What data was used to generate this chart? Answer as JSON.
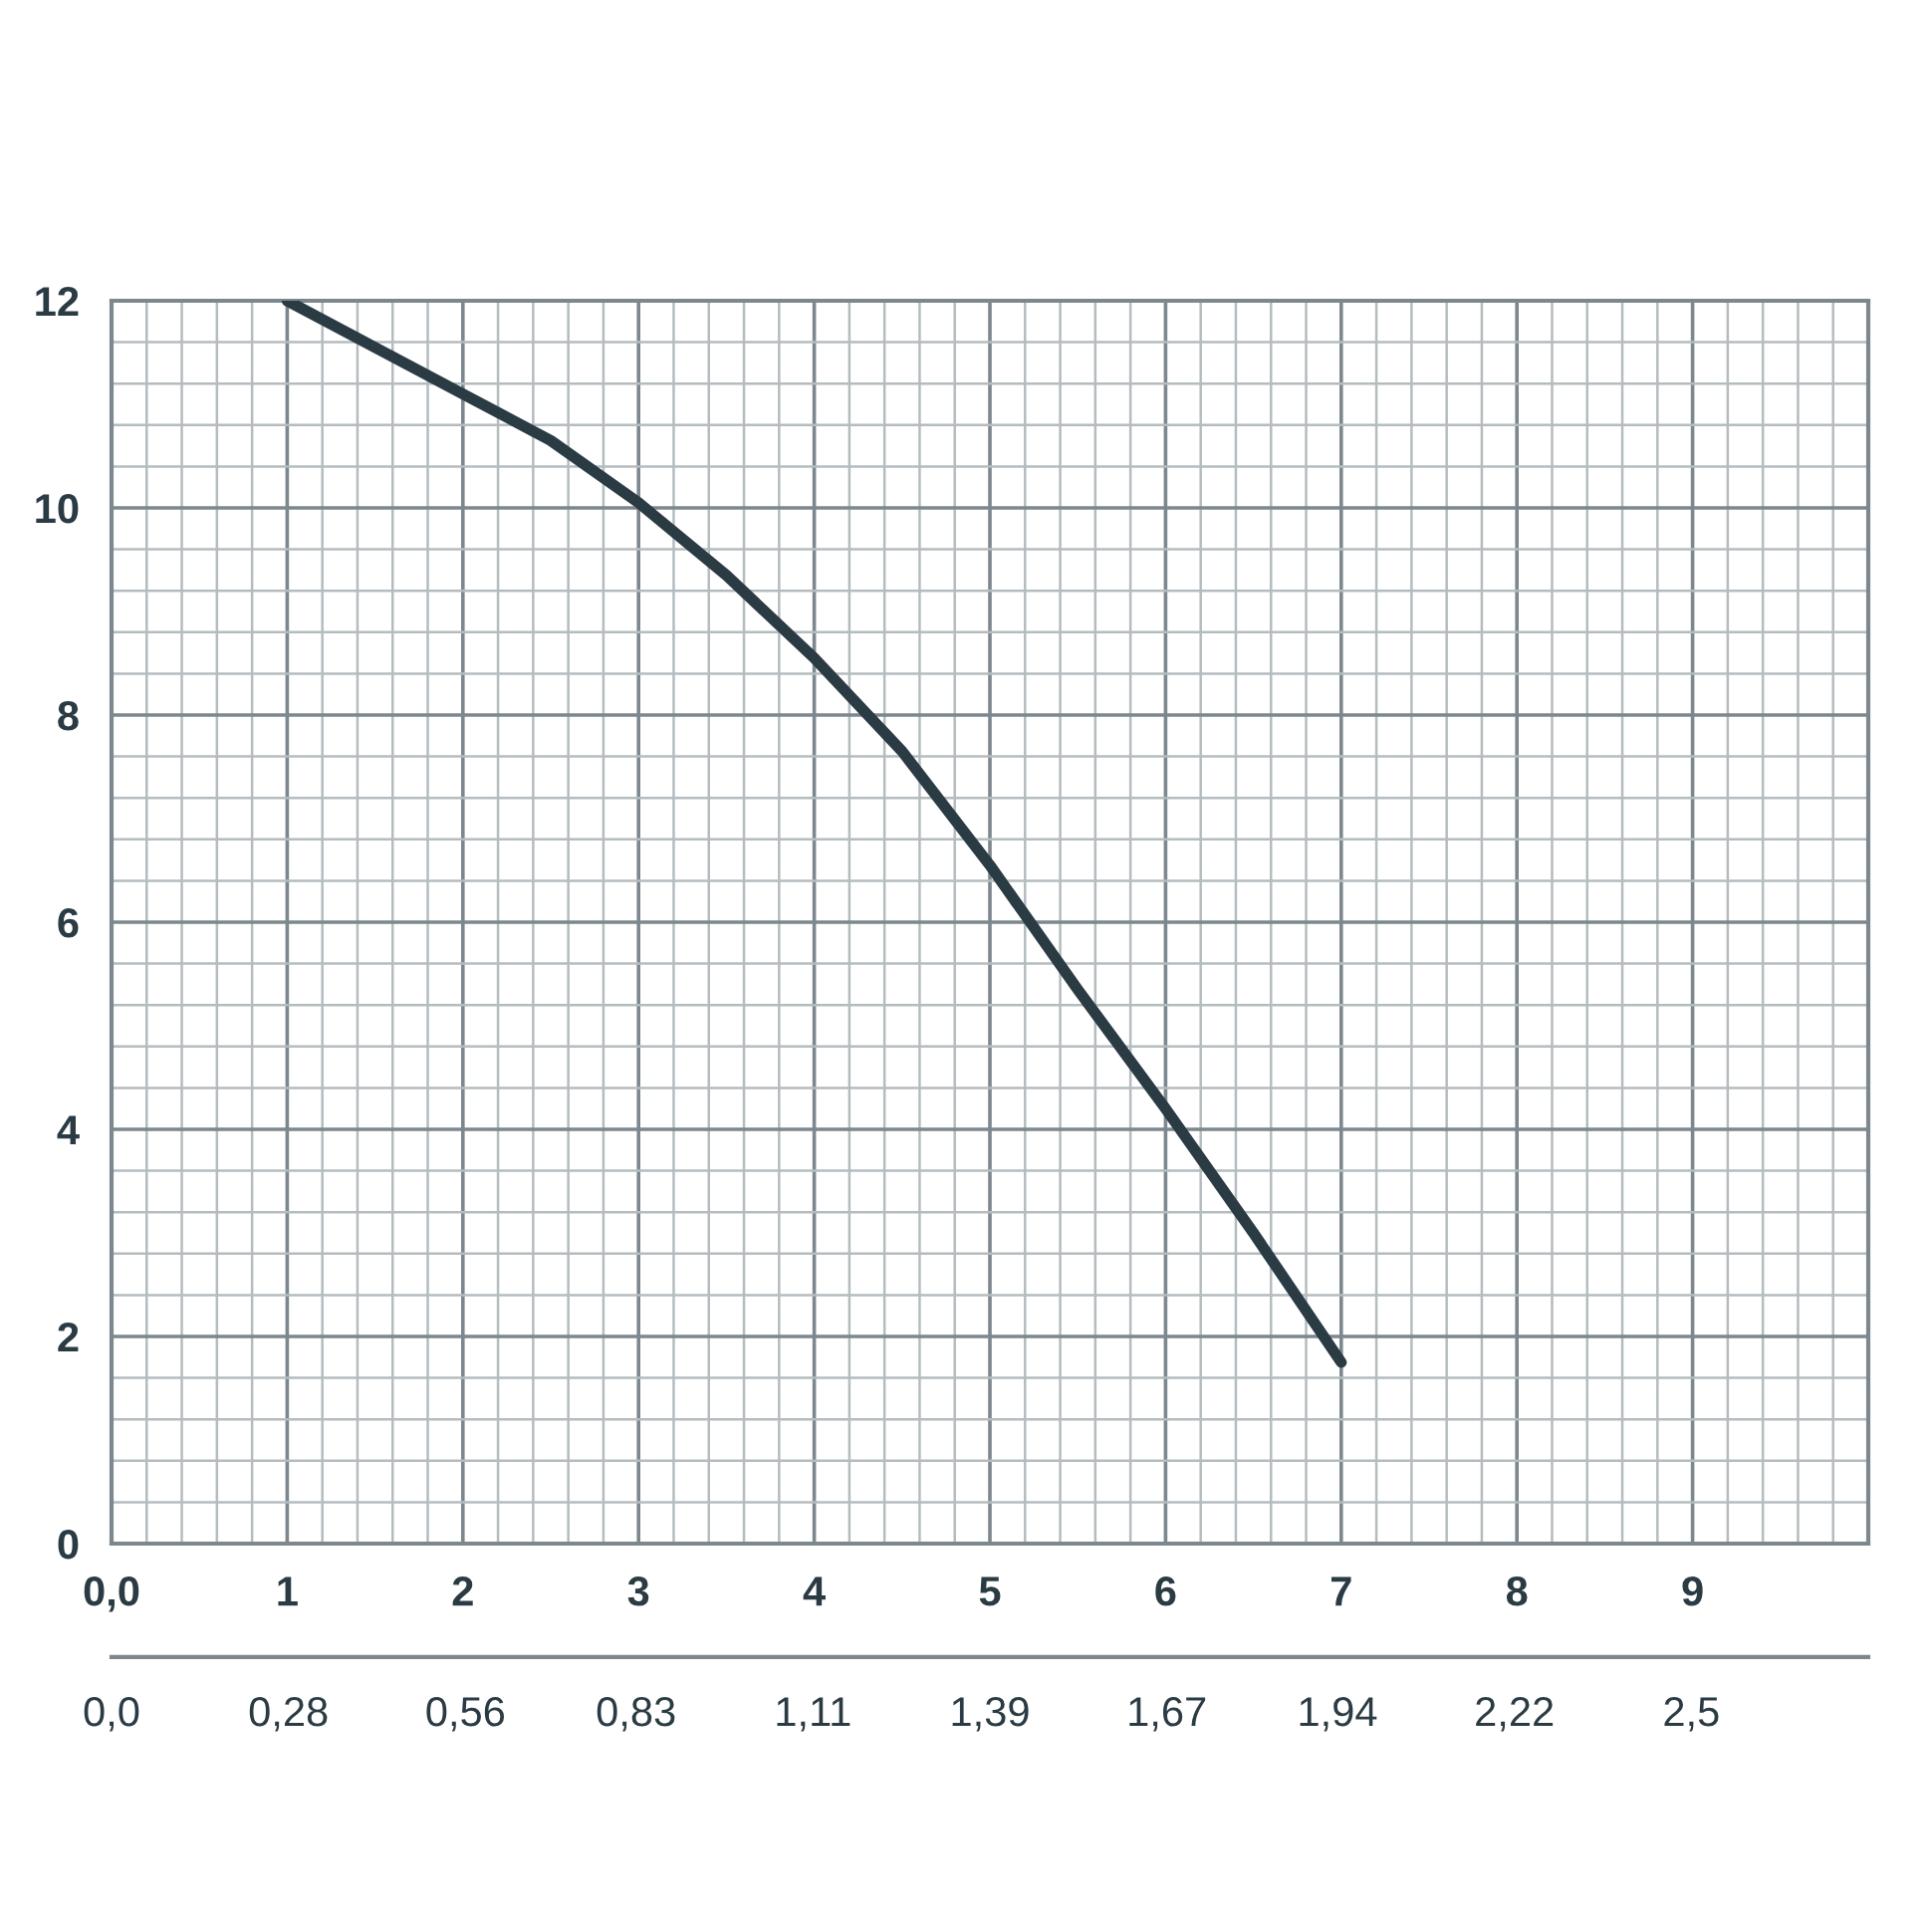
{
  "chart_data": {
    "type": "line",
    "x": [
      1,
      1.5,
      2,
      2.5,
      3,
      3.5,
      4,
      4.5,
      5,
      5.5,
      6,
      6.5,
      7
    ],
    "series": [
      {
        "color": "#2b3b44",
        "values": [
          12,
          11.55,
          11.1,
          10.65,
          10.05,
          9.35,
          8.55,
          7.65,
          6.55,
          5.35,
          4.2,
          3.0,
          1.75
        ]
      }
    ],
    "xlim": [
      0,
      10
    ],
    "ylim": [
      0,
      12
    ],
    "xticks": [
      {
        "value": 0,
        "label": "0,0"
      },
      1,
      2,
      3,
      4,
      5,
      6,
      7,
      8,
      9,
      {
        "value": 10,
        "label": null
      }
    ],
    "yticks": [
      0,
      2,
      4,
      6,
      8,
      10,
      12
    ],
    "x2lim": [
      0,
      2.78
    ],
    "x2ticks": [
      {
        "value": 0,
        "label": "0,0"
      },
      {
        "value": 0.28,
        "label": "0,28"
      },
      {
        "value": 0.56,
        "label": "0,56"
      },
      {
        "value": 0.83,
        "label": "0,83"
      },
      {
        "value": 1.11,
        "label": "1,11"
      },
      {
        "value": 1.39,
        "label": "1,39"
      },
      {
        "value": 1.67,
        "label": "1,67"
      },
      {
        "value": 1.94,
        "label": "1,94"
      },
      {
        "value": 2.22,
        "label": "2,22"
      },
      {
        "value": 2.5,
        "label": "2,5"
      },
      {
        "value": 2.78,
        "label": null
      }
    ],
    "grid": true,
    "line_style": "solid",
    "marker": "none"
  }
}
